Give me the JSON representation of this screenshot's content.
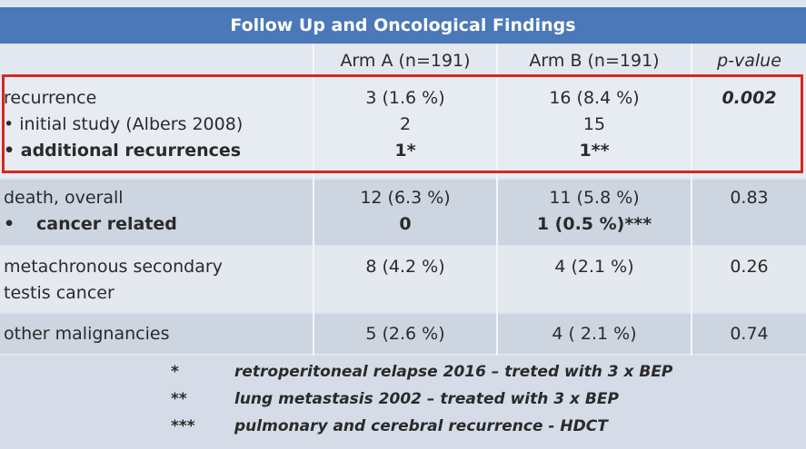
{
  "table": {
    "title": "Follow Up and Oncological Findings",
    "headers": [
      "",
      "Arm A (n=191)",
      "Arm B (n=191)",
      "p-value"
    ],
    "rows": {
      "recurrence": {
        "label": "recurrence",
        "arm_a": "3 (1.6 %)",
        "arm_b": "16 (8.4 %)",
        "p": "0.002",
        "sub1_label": "• initial study (Albers 2008)",
        "sub1_a": "2",
        "sub1_b": "15",
        "sub2_label": "• additional recurrences",
        "sub2_a": "1*",
        "sub2_b": "1**"
      },
      "death": {
        "label": "death, overall",
        "arm_a": "12 (6.3 %)",
        "arm_b": "11 (5.8 %)",
        "p": "0.83",
        "sub_bullet": "•",
        "sub_label": "cancer related",
        "sub_a": "0",
        "sub_b": "1 (0.5 %)***"
      },
      "metachronous": {
        "label_line1": "metachronous secondary",
        "label_line2": "testis cancer",
        "arm_a": "8 (4.2 %)",
        "arm_b": "4 (2.1 %)",
        "p": "0.26"
      },
      "other": {
        "label": "other malignancies",
        "arm_a": "5 (2.6 %)",
        "arm_b": "4 ( 2.1 %)",
        "p": "0.74"
      }
    },
    "footnotes": [
      {
        "mark": "*",
        "text": "retroperitoneal relapse 2016 – treted with 3 x BEP"
      },
      {
        "mark": "**",
        "text": "lung metastasis 2002 – treated with 3 x BEP"
      },
      {
        "mark": "***",
        "text": "pulmonary and cerebral recurrence - HDCT"
      }
    ],
    "colors": {
      "title_bar": "#4a78b8",
      "highlight_border": "#d7261e"
    }
  }
}
